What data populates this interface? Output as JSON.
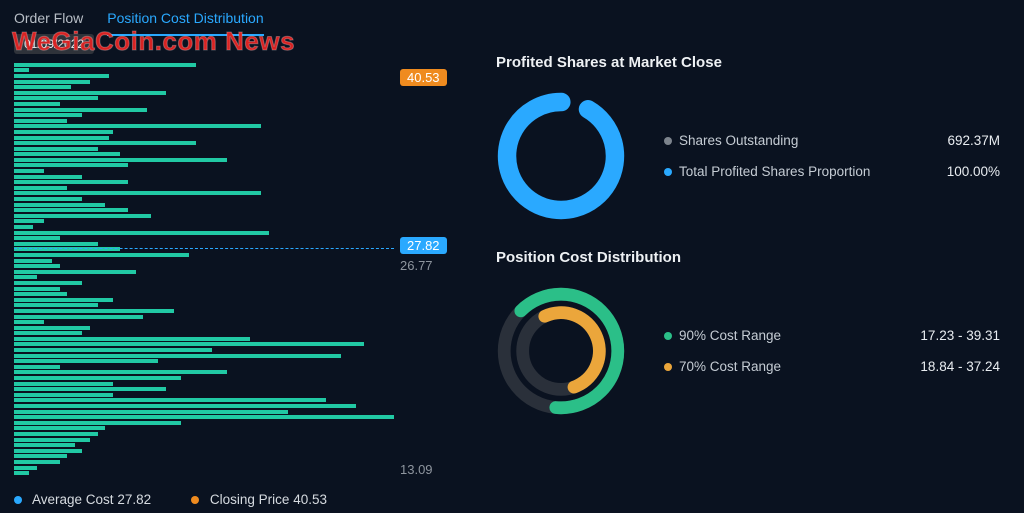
{
  "tabs": {
    "order_flow": "Order Flow",
    "pcd": "Position Cost Distribution",
    "active": "pcd"
  },
  "date_button": "01/09/2022",
  "watermark": "WeGiaCoin.com News",
  "colors": {
    "bar": "#21c9a4",
    "blue": "#2aa9ff",
    "orange": "#ef8b1f",
    "green": "#2bbf88",
    "yellow": "#eba63b",
    "muted": "#7d848d",
    "text": "#c8ced6",
    "ring_track": "#2a303a"
  },
  "histogram": {
    "closing_price": "40.53",
    "avg_cost": "27.82",
    "label_under_avg": "26.77",
    "low_price": "13.09",
    "avg_line_pct": 45,
    "bars": [
      48,
      4,
      25,
      20,
      15,
      40,
      22,
      12,
      35,
      18,
      14,
      65,
      26,
      25,
      48,
      22,
      28,
      56,
      30,
      8,
      18,
      30,
      14,
      65,
      18,
      24,
      30,
      36,
      8,
      5,
      67,
      12,
      22,
      28,
      46,
      10,
      12,
      32,
      6,
      18,
      12,
      14,
      26,
      22,
      42,
      34,
      8,
      20,
      18,
      62,
      92,
      52,
      86,
      38,
      12,
      56,
      44,
      26,
      40,
      26,
      82,
      90,
      72,
      100,
      44,
      24,
      22,
      20,
      16,
      18,
      14,
      12,
      6,
      4
    ]
  },
  "legend": {
    "avg_label": "Average Cost",
    "avg_value": "27.82",
    "close_label": "Closing Price",
    "close_value": "40.53"
  },
  "profited": {
    "title": "Profited Shares at Market Close",
    "ring_start": 30,
    "ring_arc": 330,
    "rows": [
      {
        "dot": "#7d848d",
        "label": "Shares Outstanding",
        "value": "692.37M"
      },
      {
        "dot": "#2aa9ff",
        "label": "Total Profited Shares Proportion",
        "value": "100.00%"
      }
    ]
  },
  "pcd": {
    "title": "Position Cost Distribution",
    "outer": {
      "color": "#2bbf88",
      "start": 315,
      "arc": 230
    },
    "inner": {
      "color": "#eba63b",
      "start": 335,
      "arc": 185
    },
    "rows": [
      {
        "dot": "#2bbf88",
        "label": "90% Cost Range",
        "value": "17.23 - 39.31"
      },
      {
        "dot": "#eba63b",
        "label": "70% Cost Range",
        "value": "18.84 - 37.24"
      }
    ]
  }
}
